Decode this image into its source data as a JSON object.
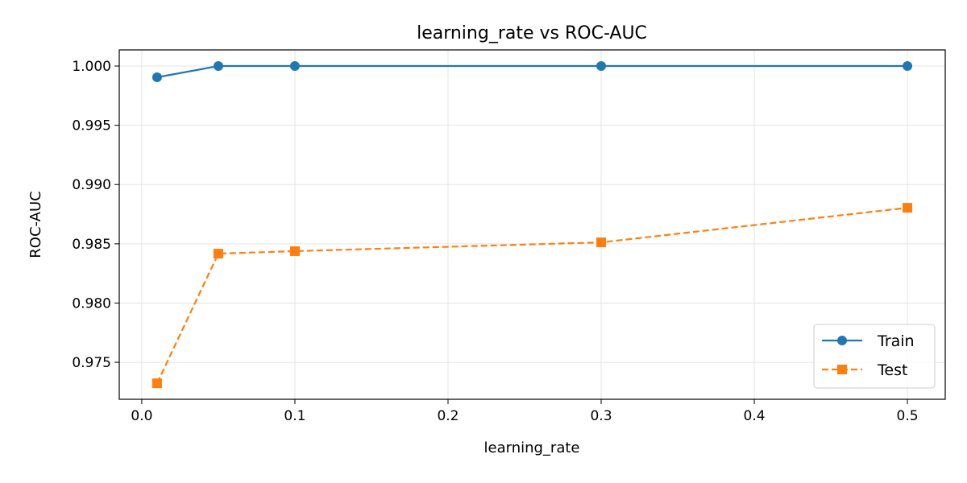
{
  "chart_data": {
    "type": "line",
    "title": "learning_rate vs ROC-AUC",
    "xlabel": "learning_rate",
    "ylabel": "ROC-AUC",
    "x": [
      0.01,
      0.05,
      0.1,
      0.3,
      0.5
    ],
    "series": [
      {
        "name": "Train",
        "values": [
          0.99905,
          1.0,
          1.0,
          1.0,
          1.0
        ],
        "color": "#1f77b4",
        "marker": "circle",
        "linestyle": "solid"
      },
      {
        "name": "Test",
        "values": [
          0.97323,
          0.98417,
          0.98438,
          0.98512,
          0.98804
        ],
        "color": "#ff7f0e",
        "marker": "square",
        "linestyle": "dashed"
      }
    ],
    "xlim": [
      -0.0147,
      0.5247
    ],
    "ylim": [
      0.97188,
      1.00136
    ],
    "xticks": [
      0.0,
      0.1,
      0.2,
      0.3,
      0.4,
      0.5
    ],
    "xtick_labels": [
      "0.0",
      "0.1",
      "0.2",
      "0.3",
      "0.4",
      "0.5"
    ],
    "yticks": [
      0.975,
      0.98,
      0.985,
      0.99,
      0.995,
      1.0
    ],
    "ytick_labels": [
      "0.975",
      "0.980",
      "0.985",
      "0.990",
      "0.995",
      "1.000"
    ],
    "grid": true,
    "legend_position": "bottom-right"
  }
}
